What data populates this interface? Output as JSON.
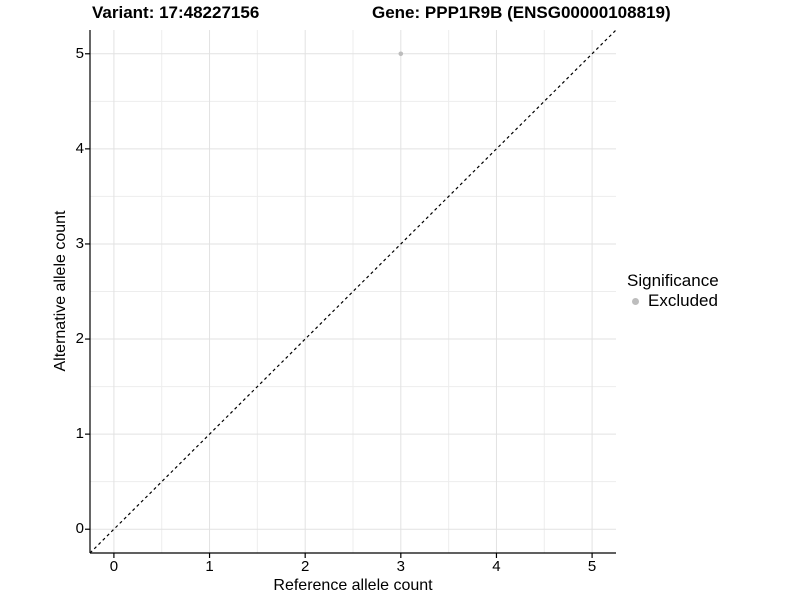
{
  "header": {
    "variant_title": "Variant: 17:48227156",
    "gene_title": "Gene: PPP1R9B (ENSG00000108819)"
  },
  "chart_data": {
    "type": "scatter",
    "title_left": "Variant: 17:48227156",
    "title_right": "Gene: PPP1R9B (ENSG00000108819)",
    "xlabel": "Reference allele count",
    "ylabel": "Alternative allele count",
    "xticks": [
      0,
      1,
      2,
      3,
      4,
      5
    ],
    "yticks": [
      0,
      1,
      2,
      3,
      4,
      5
    ],
    "xlim": [
      -0.25,
      5.25
    ],
    "ylim": [
      -0.25,
      5.25
    ],
    "grid": "major and minor gridlines on, white panel background",
    "points": [
      {
        "x": 3,
        "y": 5,
        "series": "Excluded"
      }
    ],
    "identity_line": {
      "type": "dashed",
      "equation": "y = x",
      "color": "#000000"
    },
    "legend": {
      "title": "Significance",
      "position": "right",
      "entries": [
        {
          "label": "Excluded",
          "marker": "circle",
          "color": "#bdbdbd"
        }
      ]
    },
    "colors": {
      "point": "#bdbdbd",
      "major_grid": "#e2e2e2",
      "minor_grid": "#ededed",
      "axis_line": "#000000",
      "text": "#000000",
      "background": "#ffffff"
    }
  }
}
